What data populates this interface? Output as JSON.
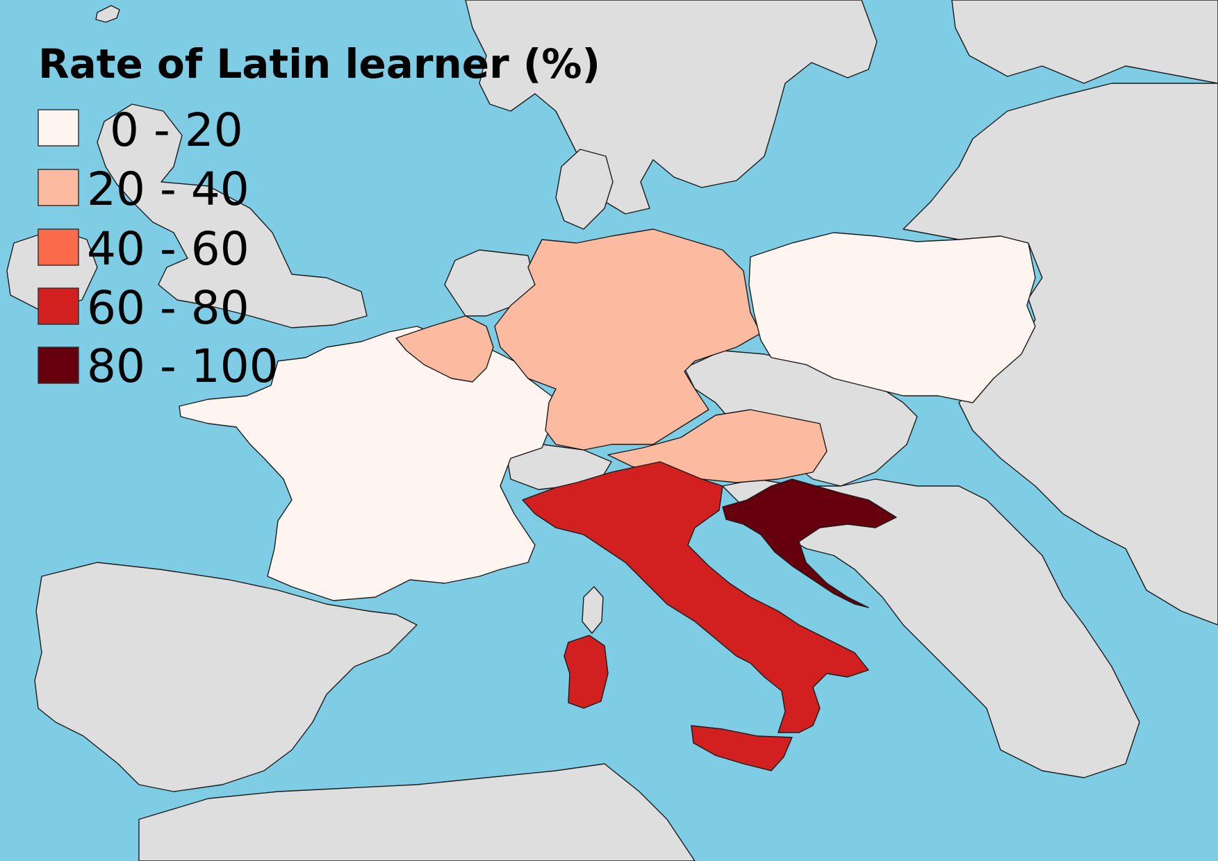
{
  "map": {
    "title": "Rate of Latin learner (%)",
    "sea_color": "#7fcde5",
    "no_data_color": "#dedede",
    "border_color": "#1a1a1a"
  },
  "legend": {
    "items": [
      {
        "label": "0 - 20",
        "color": "#fff5f0"
      },
      {
        "label": "20 - 40",
        "color": "#fcbba1"
      },
      {
        "label": "40 - 60",
        "color": "#fb6a4a"
      },
      {
        "label": "60 - 80",
        "color": "#d22020"
      },
      {
        "label": "80 - 100",
        "color": "#67000d"
      }
    ]
  },
  "regions": [
    {
      "name": "France",
      "class_index": 0
    },
    {
      "name": "Poland",
      "class_index": 0
    },
    {
      "name": "Belgium",
      "class_index": 1
    },
    {
      "name": "Germany",
      "class_index": 1
    },
    {
      "name": "Austria",
      "class_index": 1
    },
    {
      "name": "Italy",
      "class_index": 3
    },
    {
      "name": "Croatia",
      "class_index": 4
    }
  ]
}
